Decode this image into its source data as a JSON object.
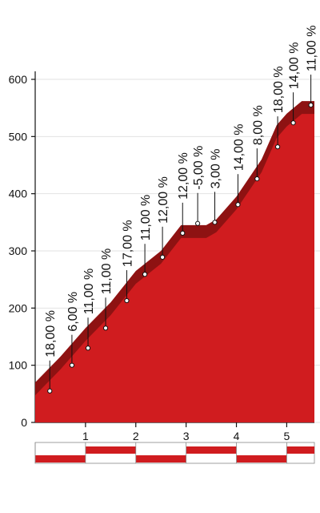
{
  "chart_data": {
    "type": "area",
    "x": [
      0,
      0.5,
      1,
      1.5,
      2,
      2.5,
      2.9,
      3.4,
      3.6,
      4,
      4.5,
      4.8,
      5,
      5.3,
      5.55
    ],
    "values": [
      70,
      115,
      165,
      210,
      265,
      300,
      345,
      345,
      355,
      395,
      460,
      520,
      540,
      562,
      562
    ],
    "color": "#d01c1f",
    "edge_color": "#8e1212",
    "xlim": [
      0,
      5.55
    ],
    "xticks": [
      1,
      2,
      3,
      4,
      5
    ],
    "ylim": [
      0,
      600
    ],
    "yticks": [
      0,
      100,
      200,
      300,
      400,
      500,
      600
    ],
    "grid": true,
    "gradients": {
      "x": [
        0.29,
        0.73,
        1.05,
        1.4,
        1.82,
        2.18,
        2.53,
        2.93,
        3.23,
        3.57,
        4.03,
        4.41,
        4.82,
        5.13,
        5.48
      ],
      "elevation": [
        55,
        100,
        130,
        165,
        213,
        259,
        289,
        331,
        348,
        350,
        381,
        426,
        482,
        524,
        555
      ],
      "values": [
        18,
        6,
        11,
        11,
        17,
        11,
        12,
        12,
        -5,
        3,
        14,
        8,
        18,
        14,
        11
      ],
      "value_labels": [
        "18,00 %",
        "6,00 %",
        "11,00 %",
        "11,00 %",
        "17,00 %",
        "11,00 %",
        "12,00 %",
        "12,00 %",
        "-5,00 %",
        "3,00 %",
        "14,00 %",
        "8,00 %",
        "18,00 %",
        "14,00 %",
        "11,00 %"
      ],
      "label_colors": [
        "#e0201f",
        "#111111",
        "#111111",
        "#111111",
        "#111111",
        "#111111",
        "#111111",
        "#111111",
        "#111111",
        "#111111",
        "#111111",
        "#111111",
        "#e0201f",
        "#111111",
        "#111111"
      ]
    }
  }
}
